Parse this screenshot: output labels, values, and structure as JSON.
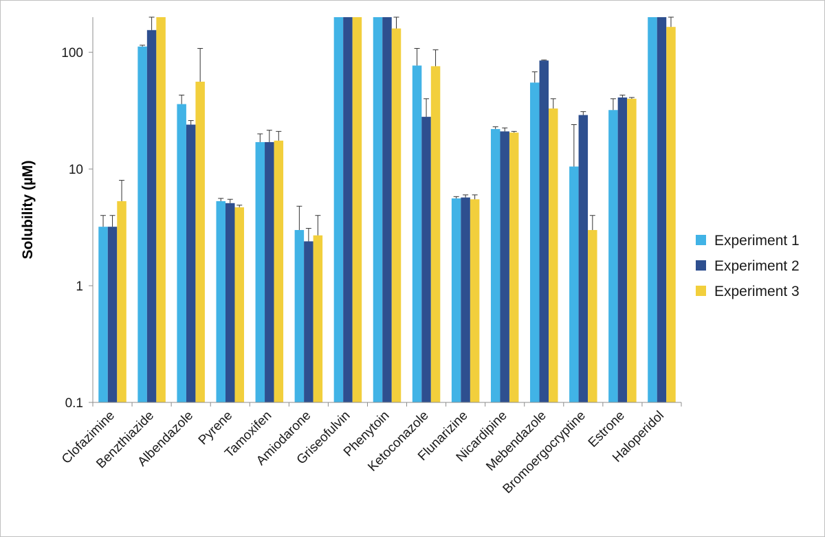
{
  "chart_data": {
    "type": "bar",
    "title": "",
    "xlabel": "",
    "ylabel": "Solubility (µM)",
    "yscale": "log",
    "ylim": [
      0.1,
      200
    ],
    "yticks": [
      0.1,
      1,
      10,
      100
    ],
    "ytick_labels": [
      "0.1",
      "1",
      "10",
      "100"
    ],
    "grid": false,
    "legend_position": "right",
    "categories": [
      "Clofazimine",
      "Benzthiazide",
      "Albendazole",
      "Pyrene",
      "Tamoxifen",
      "Amiodarone",
      "Griseofulvin",
      "Phenytoin",
      "Ketoconazole",
      "Flunarizine",
      "Nicardipine",
      "Mebendazole",
      "Bromoergocryptine",
      "Estrone",
      "Haloperidol"
    ],
    "series": [
      {
        "name": "Experiment 1",
        "color": "#41b3e6",
        "values": [
          3.2,
          112,
          36,
          5.3,
          17,
          3.0,
          200,
          200,
          77,
          5.6,
          22,
          55,
          10.5,
          32,
          200
        ],
        "error_upper": [
          4.0,
          115,
          43,
          5.6,
          20,
          4.8,
          200,
          200,
          108,
          5.8,
          23,
          68,
          24,
          40,
          200
        ]
      },
      {
        "name": "Experiment 2",
        "color": "#2e4f8f",
        "values": [
          3.2,
          155,
          24,
          5.1,
          17,
          2.4,
          200,
          200,
          28,
          5.7,
          21,
          85,
          29,
          41,
          200
        ],
        "error_upper": [
          4.0,
          200,
          26,
          5.5,
          21.5,
          3.1,
          200,
          200,
          40,
          6.0,
          22.5,
          86,
          31,
          43,
          200
        ]
      },
      {
        "name": "Experiment 3",
        "color": "#f2cf3c",
        "values": [
          5.3,
          200,
          56,
          4.7,
          17.5,
          2.7,
          200,
          160,
          76,
          5.5,
          20.5,
          33,
          3.0,
          40,
          165
        ],
        "error_upper": [
          8.0,
          200,
          108,
          4.9,
          21,
          4.0,
          200,
          200,
          105,
          6.0,
          21,
          40,
          4.0,
          41,
          200
        ]
      }
    ]
  }
}
